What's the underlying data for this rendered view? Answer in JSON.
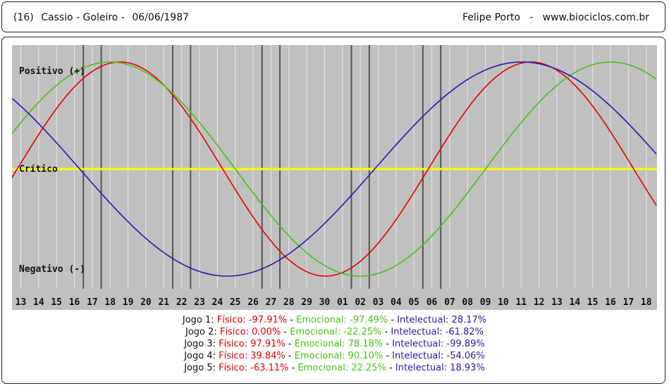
{
  "header": {
    "number": "(16)",
    "athlete": "Cassio - Goleiro -",
    "date": "06/06/1987",
    "credits": "Felipe Porto   -   www.biociclos.com.br"
  },
  "chart_data": {
    "type": "line",
    "x_categories": [
      "13",
      "14",
      "15",
      "16",
      "17",
      "18",
      "19",
      "20",
      "21",
      "22",
      "23",
      "24",
      "25",
      "26",
      "27",
      "28",
      "29",
      "30",
      "01",
      "02",
      "03",
      "04",
      "05",
      "06",
      "07",
      "08",
      "09",
      "10",
      "11",
      "12",
      "13",
      "14",
      "15",
      "16",
      "17",
      "18"
    ],
    "ylabels": {
      "positive": "Positivo (+)",
      "critical": "Crítico",
      "negative": "Negativo (-)"
    },
    "ylim": [
      -100,
      100
    ],
    "series": [
      {
        "name": "Físico",
        "color": "#e60000",
        "period": 23,
        "phase": 0.2
      },
      {
        "name": "Emocional",
        "color": "#4cbf1a",
        "period": 28,
        "phase": 2.0
      },
      {
        "name": "Intelectual",
        "color": "#2a1aa8",
        "period": 33,
        "phase": 13.2
      }
    ],
    "critical_color": "#ffff00",
    "game_positions": [
      4,
      5,
      9,
      10,
      14,
      15,
      19,
      20,
      23,
      24
    ],
    "background": "#c0c0c0",
    "grid": true
  },
  "legend": [
    {
      "label": "Jogo 1:",
      "fisico": "Físico: -97.91%",
      "emocional": "Emocional: -97.49%",
      "intelectual": "Intelectual: 28.17%"
    },
    {
      "label": "Jogo 2:",
      "fisico": "Físico: 0.00%",
      "emocional": "Emocional: -22.25%",
      "intelectual": "Intelectual: -61.82%"
    },
    {
      "label": "Jogo 3:",
      "fisico": "Físico: 97.91%",
      "emocional": "Emocional: 78.18%",
      "intelectual": "Intelectual: -99.89%"
    },
    {
      "label": "Jogo 4:",
      "fisico": "Físico: 39.84%",
      "emocional": "Emocional: 90.10%",
      "intelectual": "Intelectual: -54.06%"
    },
    {
      "label": "Jogo 5:",
      "fisico": "Físico: -63.11%",
      "emocional": "Emocional: 22.25%",
      "intelectual": "Intelectual: 18.93%"
    }
  ],
  "separator": " - "
}
